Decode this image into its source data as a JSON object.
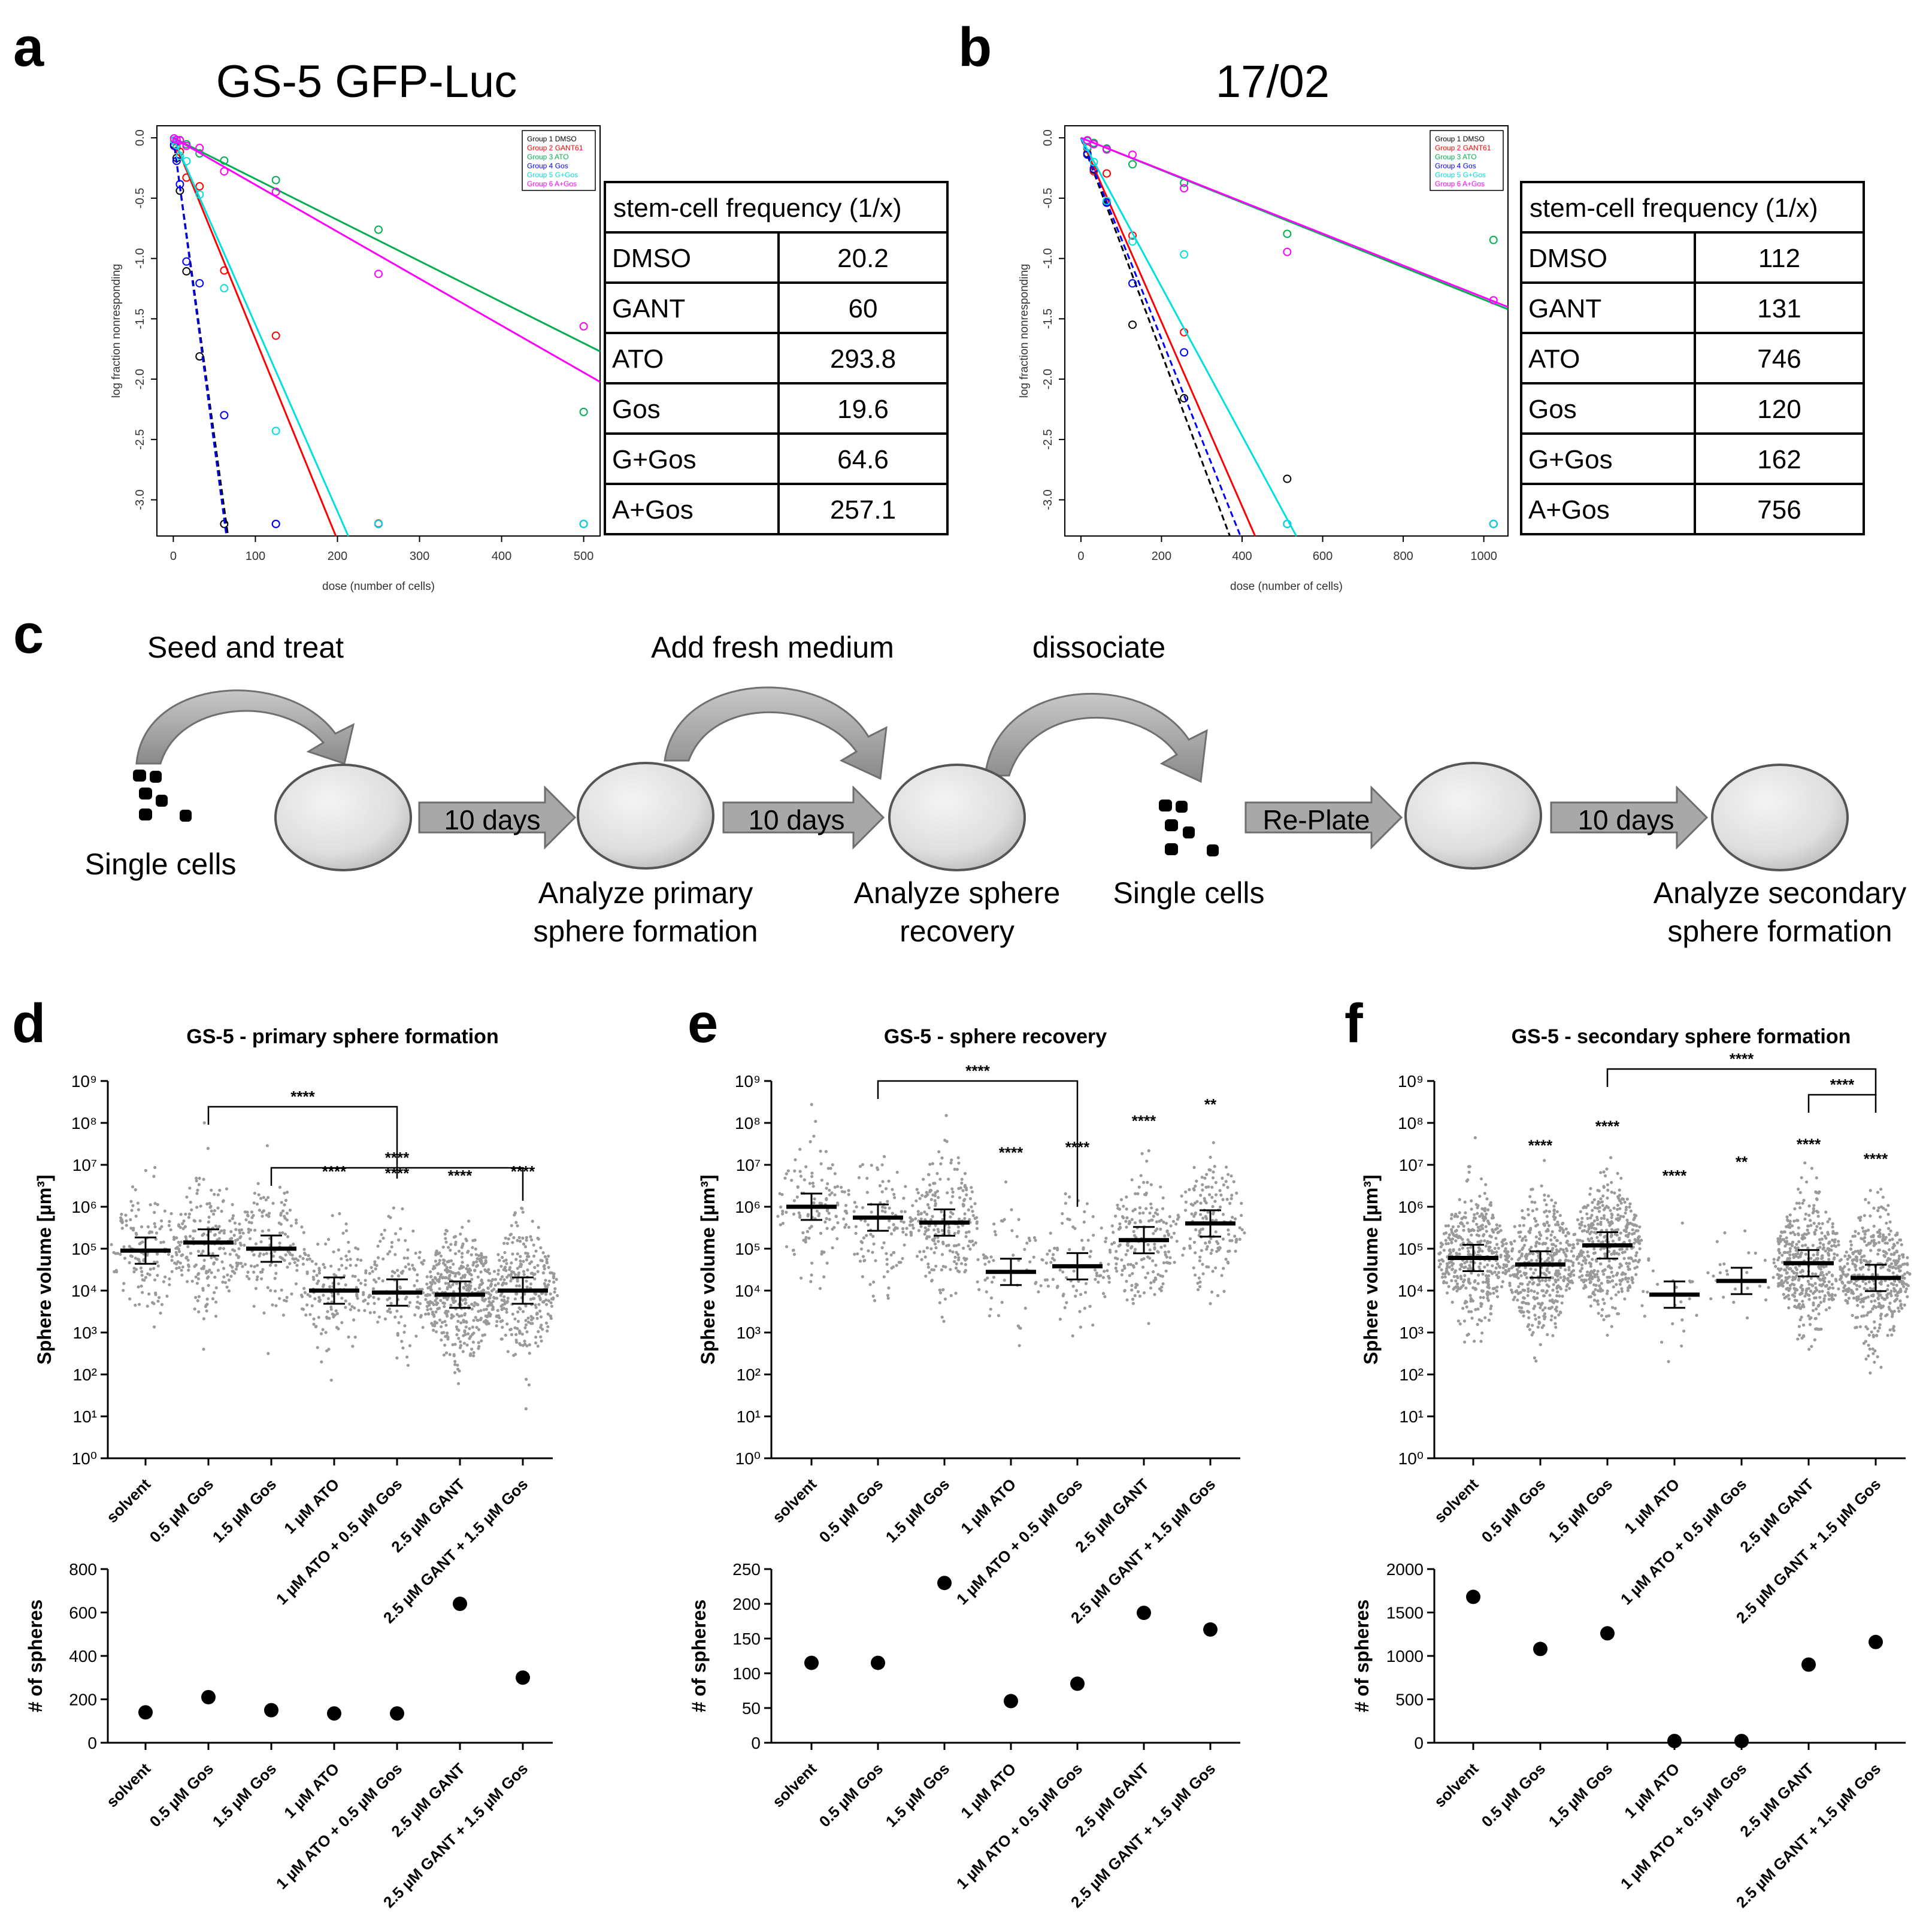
{
  "panels": {
    "a": {
      "letter": "a",
      "title": "GS-5 GFP-Luc"
    },
    "b": {
      "letter": "b",
      "title": "17/02"
    },
    "c": {
      "letter": "c"
    },
    "d": {
      "letter": "d",
      "title": "GS-5 - primary sphere formation"
    },
    "e": {
      "letter": "e",
      "title": "GS-5 - sphere recovery"
    },
    "f": {
      "letter": "f",
      "title": "GS-5 - secondary sphere formation"
    }
  },
  "limda_common": {
    "ylabel": "log fraction nonresponding",
    "xlabel": "dose (number of cells)",
    "table_header": "stem-cell frequency (1/x)",
    "legend_entries": [
      "Group 1 DMSO",
      "Group 2 GANT61",
      "Group 3 ATO",
      "Group 4 Gos",
      "Group 5 G+Gos",
      "Group 6 A+Gos"
    ],
    "colors": [
      "#000000",
      "#ff0000",
      "#00b050",
      "#0000ff",
      "#00e0e0",
      "#ff00ff"
    ]
  },
  "protocol": {
    "seed_label": "Seed and treat",
    "fresh_label": "Add fresh medium",
    "dissociate_label": "dissociate",
    "arrow1": "10 days",
    "arrow2": "10 days",
    "arrow3": "Re-Plate",
    "arrow4": "10 days",
    "single_cells_1": "Single cells",
    "analyze_primary_1": "Analyze primary",
    "analyze_primary_2": "sphere formation",
    "analyze_recovery_1": "Analyze sphere",
    "analyze_recovery_2": "recovery",
    "single_cells_2": "Single cells",
    "analyze_secondary_1": "Analyze secondary",
    "analyze_secondary_2": "sphere formation"
  },
  "sphere_common": {
    "volume_ylabel": "Sphere volume [µm³]",
    "count_ylabel": "# of spheres",
    "categories": [
      "solvent",
      "0.5 µM Gos",
      "1.5 µM Gos",
      "1 µM ATO",
      "1 µM ATO + 0.5 µM Gos",
      "2.5 µM GANT",
      "2.5 µM GANT + 1.5 µM Gos"
    ]
  },
  "chart_data": [
    {
      "panel": "a",
      "type": "scatter",
      "title": "GS-5 GFP-Luc",
      "xlabel": "dose (number of cells)",
      "ylabel": "log fraction nonresponding",
      "xlim": [
        -20,
        520
      ],
      "ylim": [
        -3.3,
        0.1
      ],
      "xticks": [
        0,
        100,
        200,
        300,
        400,
        500
      ],
      "yticks": [
        0.0,
        -0.5,
        -1.0,
        -1.5,
        -2.0,
        -2.5,
        -3.0
      ],
      "series": [
        {
          "name": "DMSO",
          "frequency": 20.2
        },
        {
          "name": "GANT",
          "frequency": 60
        },
        {
          "name": "ATO",
          "frequency": 293.8
        },
        {
          "name": "Gos",
          "frequency": 19.6
        },
        {
          "name": "G+Gos",
          "frequency": 64.6
        },
        {
          "name": "A+Gos",
          "frequency": 257.1
        }
      ],
      "table": {
        "header": "stem-cell frequency (1/x)",
        "rows": [
          [
            "DMSO",
            "20.2"
          ],
          [
            "GANT",
            "60"
          ],
          [
            "ATO",
            "293.8"
          ],
          [
            "Gos",
            "19.6"
          ],
          [
            "G+Gos",
            "64.6"
          ],
          [
            "A+Gos",
            "257.1"
          ]
        ]
      }
    },
    {
      "panel": "b",
      "type": "scatter",
      "title": "17/02",
      "xlabel": "dose (number of cells)",
      "ylabel": "log fraction nonresponding",
      "xlim": [
        -40,
        1060
      ],
      "ylim": [
        -3.3,
        0.1
      ],
      "xticks": [
        0,
        200,
        400,
        600,
        800,
        1000
      ],
      "yticks": [
        0.0,
        -0.5,
        -1.0,
        -1.5,
        -2.0,
        -2.5,
        -3.0
      ],
      "series": [
        {
          "name": "DMSO",
          "frequency": 112
        },
        {
          "name": "GANT",
          "frequency": 131
        },
        {
          "name": "ATO",
          "frequency": 746
        },
        {
          "name": "Gos",
          "frequency": 120
        },
        {
          "name": "G+Gos",
          "frequency": 162
        },
        {
          "name": "A+Gos",
          "frequency": 756
        }
      ],
      "table": {
        "header": "stem-cell frequency (1/x)",
        "rows": [
          [
            "DMSO",
            "112"
          ],
          [
            "GANT",
            "131"
          ],
          [
            "ATO",
            "746"
          ],
          [
            "Gos",
            "120"
          ],
          [
            "G+Gos",
            "162"
          ],
          [
            "A+Gos",
            "756"
          ]
        ]
      }
    },
    {
      "panel": "d",
      "type": "scatter",
      "title": "GS-5 - primary sphere formation",
      "ylabel": "Sphere volume [µm³]",
      "yscale": "log",
      "ylim": [
        1,
        1000000000
      ],
      "yticks": [
        "10⁰",
        "10¹",
        "10²",
        "10³",
        "10⁴",
        "10⁵",
        "10⁶",
        "10⁷",
        "10⁸",
        "10⁹"
      ],
      "categories": [
        "solvent",
        "0.5 µM Gos",
        "1.5 µM Gos",
        "1 µM ATO",
        "1 µM ATO + 0.5 µM Gos",
        "2.5 µM GANT",
        "2.5 µM GANT + 1.5 µM Gos"
      ],
      "medians": [
        90000,
        140000,
        100000,
        10000,
        9000,
        8000,
        10000
      ],
      "significance": [
        "",
        "",
        "",
        "****",
        "****",
        "****",
        "****"
      ],
      "brackets": [
        {
          "from": 1,
          "to": 4,
          "label": "****"
        },
        {
          "from": 2,
          "to": 6,
          "label": "****"
        }
      ],
      "counts_ylabel": "# of spheres",
      "counts_ylim": [
        0,
        800
      ],
      "counts_yticks": [
        0,
        200,
        400,
        600,
        800
      ],
      "counts": [
        140,
        210,
        150,
        135,
        135,
        640,
        300
      ]
    },
    {
      "panel": "e",
      "type": "scatter",
      "title": "GS-5 - sphere recovery",
      "ylabel": "Sphere volume [µm³]",
      "yscale": "log",
      "ylim": [
        1,
        1000000000
      ],
      "yticks": [
        "10⁰",
        "10¹",
        "10²",
        "10³",
        "10⁴",
        "10⁵",
        "10⁶",
        "10⁷",
        "10⁸",
        "10⁹"
      ],
      "categories": [
        "solvent",
        "0.5 µM Gos",
        "1.5 µM Gos",
        "1 µM ATO",
        "1 µM ATO + 0.5 µM Gos",
        "2.5 µM GANT",
        "2.5 µM GANT + 1.5 µM Gos"
      ],
      "medians": [
        1000000,
        550000,
        420000,
        28000,
        38000,
        160000,
        400000
      ],
      "significance": [
        "",
        "",
        "",
        "****",
        "****",
        "****",
        "**"
      ],
      "brackets": [
        {
          "from": 1,
          "to": 4,
          "label": "****"
        }
      ],
      "counts_ylabel": "# of spheres",
      "counts_ylim": [
        0,
        250
      ],
      "counts_yticks": [
        0,
        50,
        100,
        150,
        200,
        250
      ],
      "counts": [
        115,
        115,
        230,
        60,
        85,
        187,
        163
      ]
    },
    {
      "panel": "f",
      "type": "scatter",
      "title": "GS-5 - secondary sphere formation",
      "ylabel": "Sphere volume [µm³]",
      "yscale": "log",
      "ylim": [
        1,
        1000000000
      ],
      "yticks": [
        "10⁰",
        "10¹",
        "10²",
        "10³",
        "10⁴",
        "10⁵",
        "10⁶",
        "10⁷",
        "10⁸",
        "10⁹"
      ],
      "categories": [
        "solvent",
        "0.5 µM Gos",
        "1.5 µM Gos",
        "1 µM ATO",
        "1 µM ATO + 0.5 µM Gos",
        "2.5 µM GANT",
        "2.5 µM GANT + 1.5 µM Gos"
      ],
      "medians": [
        60000,
        42000,
        120000,
        8000,
        17000,
        45000,
        20000
      ],
      "significance": [
        "",
        "****",
        "****",
        "****",
        "**",
        "****",
        "****"
      ],
      "brackets": [
        {
          "from": 2,
          "to": 6,
          "label": "****"
        },
        {
          "from": 5,
          "to": 6,
          "label": "****"
        }
      ],
      "counts_ylabel": "# of spheres",
      "counts_ylim": [
        0,
        2000
      ],
      "counts_yticks": [
        0,
        500,
        1000,
        1500,
        2000
      ],
      "counts": [
        1680,
        1080,
        1260,
        20,
        20,
        900,
        1160
      ]
    }
  ]
}
